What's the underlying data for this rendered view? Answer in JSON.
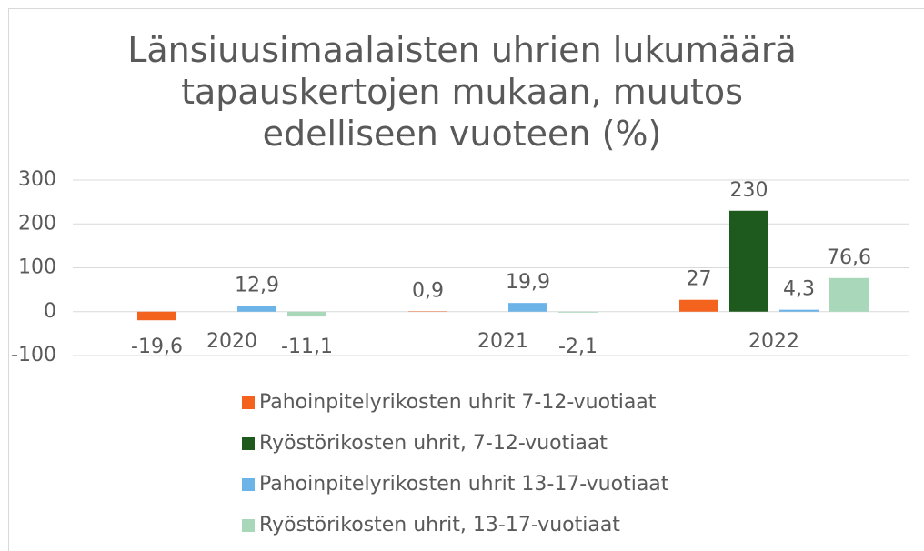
{
  "chart_data": {
    "type": "bar",
    "title": "Länsiuusimaalaisten uhrien lukumäärä tapauskertojen mukaan, muutos edelliseen vuoteen (%)",
    "categories": [
      "2020",
      "2021",
      "2022"
    ],
    "series": [
      {
        "name": "Pahoinpitelyrikosten uhrit 7-12-vuotiaat",
        "color": "#f4631e",
        "values": [
          -19.6,
          0.9,
          27
        ],
        "value_labels": [
          "-19,6",
          "0,9",
          "27"
        ]
      },
      {
        "name": "Ryöstörikosten uhrit, 7-12-vuotiaat",
        "color": "#1e5a1e",
        "values": [
          null,
          null,
          230
        ],
        "value_labels": [
          null,
          null,
          "230"
        ]
      },
      {
        "name": "Pahoinpitelyrikosten uhrit 13-17-vuotiaat",
        "color": "#6cb4e8",
        "values": [
          12.9,
          19.9,
          4.3
        ],
        "value_labels": [
          "12,9",
          "19,9",
          "4,3"
        ]
      },
      {
        "name": "Ryöstörikosten uhrit, 13-17-vuotiaat",
        "color": "#a8d8b9",
        "values": [
          -11.1,
          -2.1,
          76.6
        ],
        "value_labels": [
          "-11,1",
          "-2,1",
          "76,6"
        ]
      }
    ],
    "ylim": [
      -100,
      300
    ],
    "yticks": [
      -100,
      0,
      100,
      200,
      300
    ],
    "grid": true,
    "legend": "bottom"
  }
}
